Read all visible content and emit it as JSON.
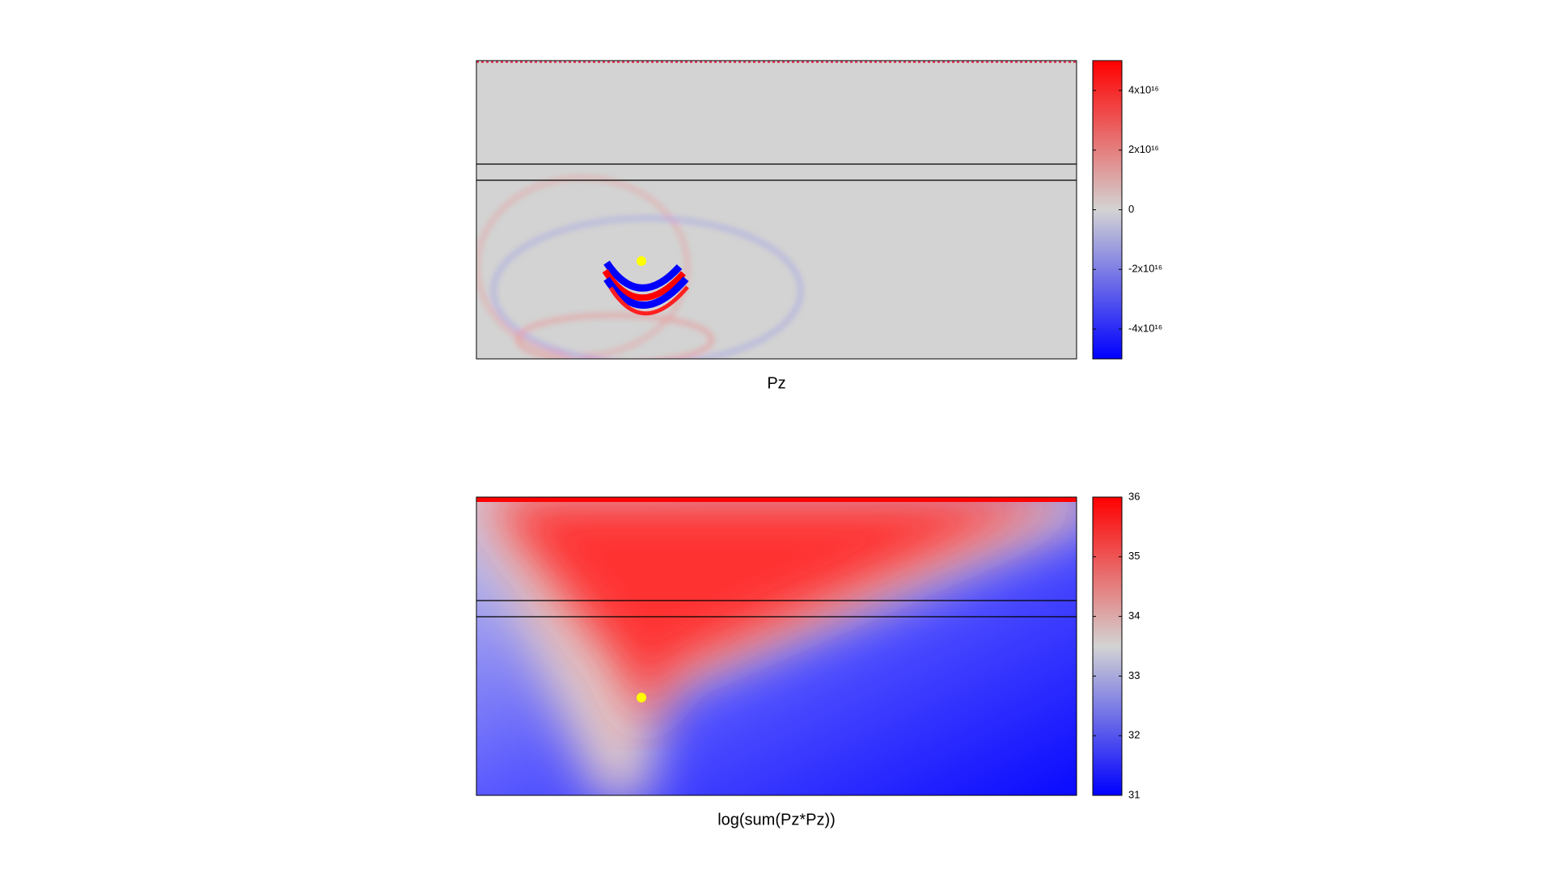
{
  "chart_data": [
    {
      "type": "heatmap",
      "title": "Pz",
      "zlim": [
        -5e+16,
        5e+16
      ],
      "zticks": [
        {
          "value": -4e+16,
          "label": "-4x10¹⁶"
        },
        {
          "value": -2e+16,
          "label": "-2x10¹⁶"
        },
        0,
        {
          "value": 2e+16,
          "label": "2x10¹⁶"
        },
        {
          "value": 4e+16,
          "label": "4x10¹⁶"
        }
      ],
      "colors": [
        "#0000ff",
        "#d3d3d3",
        "#ff0000"
      ]
    },
    {
      "type": "heatmap",
      "title": "log(sum(Pz*Pz))",
      "zlim": [
        31,
        36
      ],
      "zticks": [
        31,
        32,
        33,
        34,
        35,
        36
      ],
      "colors": [
        "#0000ff",
        "#d3d3d3",
        "#ff0000"
      ]
    }
  ]
}
